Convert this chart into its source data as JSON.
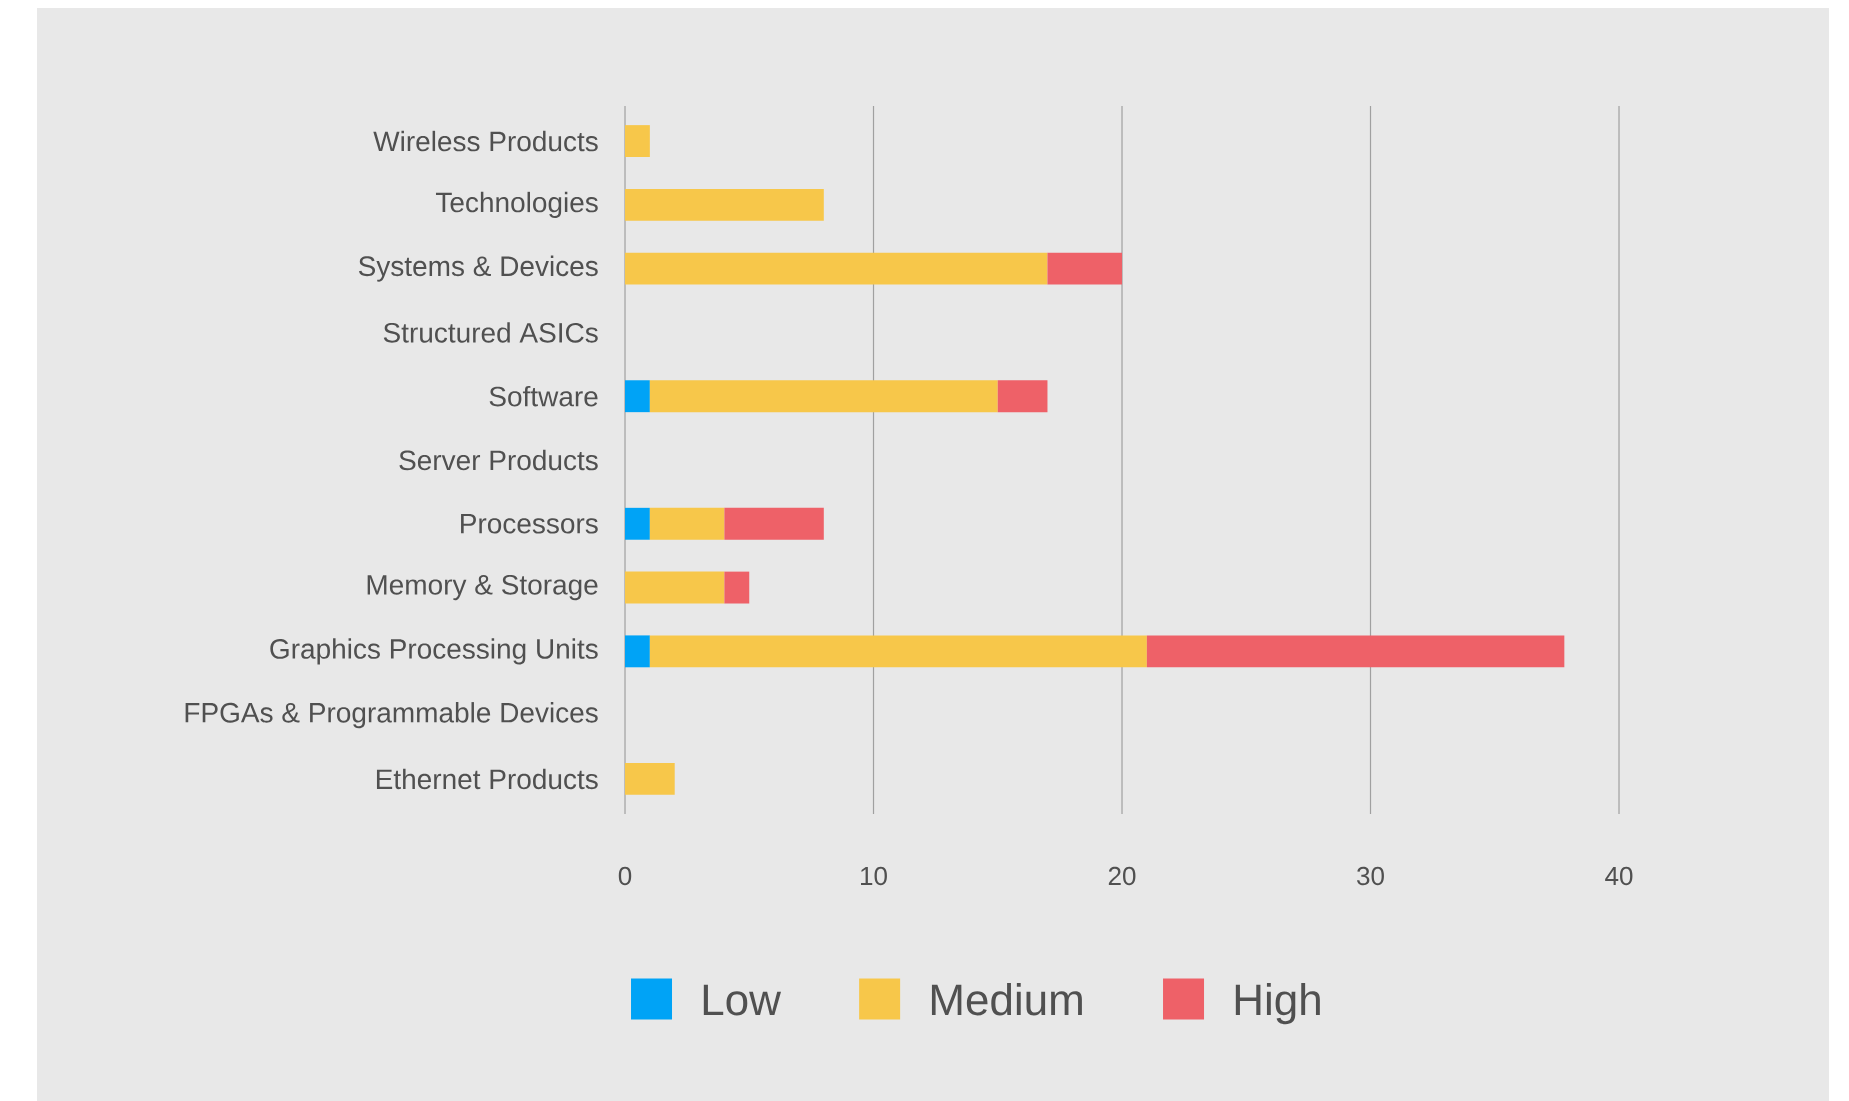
{
  "chart_data": {
    "type": "bar",
    "orientation": "horizontal",
    "stacked": true,
    "categories": [
      "Wireless Products",
      "Technologies",
      "Systems & Devices",
      "Structured ASICs",
      "Software",
      "Server Products",
      "Processors",
      "Memory & Storage",
      "Graphics Processing Units",
      "FPGAs & Programmable Devices",
      "Ethernet Products"
    ],
    "series": [
      {
        "name": "Low",
        "color": "#00a3f6",
        "values": [
          0,
          0,
          0,
          0,
          1,
          0,
          1,
          0,
          1,
          0,
          0
        ]
      },
      {
        "name": "Medium",
        "color": "#f7c74a",
        "values": [
          1,
          8,
          17,
          0,
          14,
          0,
          3,
          4,
          20,
          0,
          2
        ]
      },
      {
        "name": "High",
        "color": "#ee6168",
        "values": [
          0,
          0,
          3,
          0,
          2,
          0,
          4,
          1,
          16.8,
          0,
          0
        ]
      }
    ],
    "xlim": [
      0,
      40
    ],
    "xticks": [
      0,
      10,
      20,
      30,
      40
    ],
    "grid": "x",
    "legend": "bottom"
  }
}
